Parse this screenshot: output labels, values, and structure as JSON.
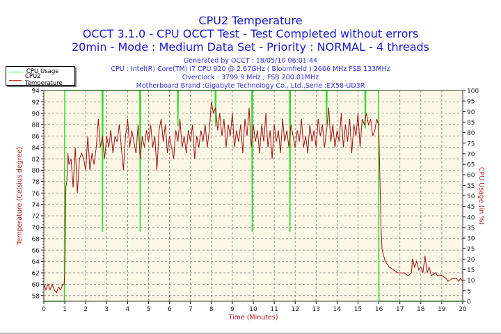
{
  "header": {
    "title": "CPU2 Temperature",
    "line2": "OCCT 3.1.0 - CPU OCCT Test - Test Completed without errors",
    "line3": "20min - Mode : Medium Data Set - Priority : NORMAL - 4 threads",
    "generated": "Generated by OCCT : 18/05/10 06:01:44",
    "cpu": "CPU : Intel(R) Core(TM) i7 CPU 920 @ 2.67GHz ( Bloomfield ) 2666 MHz FSB 133MHz",
    "overclock": "Overclock : 3799.9 MHz ; FSB 200.01MHz",
    "motherboard": "Motherboard Brand :Gigabyte Technology Co., Ltd.,Serie :EX58-UD3R"
  },
  "chart_data": {
    "type": "line",
    "xlabel": "Time (Minutes)",
    "ylabel": "Temperature (Celsius degree)",
    "y2label": "CPU Usage (in %)",
    "xlim": [
      0,
      20
    ],
    "ylim": [
      57,
      94
    ],
    "y2lim": [
      0,
      100
    ],
    "xticks": [
      0,
      1,
      2,
      3,
      4,
      5,
      6,
      7,
      8,
      9,
      10,
      11,
      12,
      13,
      14,
      15,
      16,
      17,
      18,
      19,
      20
    ],
    "yticks": [
      58,
      60,
      62,
      64,
      66,
      68,
      70,
      72,
      74,
      76,
      78,
      80,
      82,
      84,
      86,
      88,
      90,
      92,
      94
    ],
    "y2ticks": [
      0,
      5,
      10,
      15,
      20,
      25,
      30,
      35,
      40,
      45,
      50,
      55,
      60,
      65,
      70,
      75,
      80,
      85,
      90,
      95,
      100
    ],
    "grid": true,
    "legend_position": "top-left",
    "background": "#fdf7e6",
    "series": [
      {
        "name": "CPU Usage",
        "axis": "right",
        "color": "#33dd33",
        "points": [
          [
            0,
            0
          ],
          [
            0.98,
            0
          ],
          [
            1.0,
            100
          ],
          [
            2.78,
            100
          ],
          [
            2.8,
            33
          ],
          [
            2.82,
            100
          ],
          [
            4.58,
            100
          ],
          [
            4.6,
            33
          ],
          [
            4.62,
            100
          ],
          [
            6.38,
            100
          ],
          [
            6.4,
            83
          ],
          [
            6.42,
            100
          ],
          [
            8.18,
            100
          ],
          [
            8.2,
            83
          ],
          [
            8.22,
            100
          ],
          [
            9.93,
            100
          ],
          [
            9.95,
            33
          ],
          [
            9.97,
            100
          ],
          [
            11.73,
            100
          ],
          [
            11.75,
            33
          ],
          [
            11.77,
            100
          ],
          [
            13.48,
            100
          ],
          [
            13.5,
            84
          ],
          [
            13.52,
            100
          ],
          [
            15.33,
            100
          ],
          [
            15.35,
            82
          ],
          [
            15.37,
            100
          ],
          [
            15.98,
            100
          ],
          [
            16.0,
            0
          ],
          [
            20,
            0
          ]
        ]
      },
      {
        "name": "CPU2 Temperature",
        "axis": "left",
        "color": "#a01010",
        "points": [
          [
            0,
            60
          ],
          [
            0.1,
            59
          ],
          [
            0.2,
            60
          ],
          [
            0.3,
            59
          ],
          [
            0.4,
            60
          ],
          [
            0.5,
            59
          ],
          [
            0.6,
            58.5
          ],
          [
            0.7,
            59.5
          ],
          [
            0.8,
            59
          ],
          [
            0.9,
            60
          ],
          [
            0.97,
            60
          ],
          [
            1.0,
            62
          ],
          [
            1.03,
            70
          ],
          [
            1.05,
            77
          ],
          [
            1.1,
            78
          ],
          [
            1.15,
            83
          ],
          [
            1.2,
            81
          ],
          [
            1.3,
            82
          ],
          [
            1.4,
            77
          ],
          [
            1.5,
            84
          ],
          [
            1.6,
            76
          ],
          [
            1.7,
            82
          ],
          [
            1.8,
            83
          ],
          [
            1.9,
            82
          ],
          [
            2.0,
            80
          ],
          [
            2.1,
            86
          ],
          [
            2.2,
            80
          ],
          [
            2.3,
            83
          ],
          [
            2.4,
            81
          ],
          [
            2.5,
            84
          ],
          [
            2.6,
            89
          ],
          [
            2.7,
            84
          ],
          [
            2.8,
            86
          ],
          [
            2.9,
            82
          ],
          [
            3.0,
            86
          ],
          [
            3.1,
            84
          ],
          [
            3.2,
            87
          ],
          [
            3.3,
            83
          ],
          [
            3.4,
            86
          ],
          [
            3.5,
            85
          ],
          [
            3.6,
            88
          ],
          [
            3.7,
            84
          ],
          [
            3.8,
            80
          ],
          [
            3.9,
            86
          ],
          [
            4.0,
            89
          ],
          [
            4.1,
            84
          ],
          [
            4.2,
            87
          ],
          [
            4.3,
            85
          ],
          [
            4.4,
            83
          ],
          [
            4.5,
            88
          ],
          [
            4.6,
            82
          ],
          [
            4.7,
            86
          ],
          [
            4.8,
            84
          ],
          [
            4.9,
            87
          ],
          [
            5.0,
            85
          ],
          [
            5.1,
            88
          ],
          [
            5.2,
            84
          ],
          [
            5.3,
            86
          ],
          [
            5.4,
            80
          ],
          [
            5.5,
            87
          ],
          [
            5.6,
            89
          ],
          [
            5.7,
            85
          ],
          [
            5.8,
            88
          ],
          [
            5.9,
            83
          ],
          [
            6.0,
            86
          ],
          [
            6.1,
            84
          ],
          [
            6.2,
            82
          ],
          [
            6.3,
            87
          ],
          [
            6.4,
            85
          ],
          [
            6.5,
            89
          ],
          [
            6.6,
            84
          ],
          [
            6.7,
            86
          ],
          [
            6.8,
            83
          ],
          [
            6.9,
            87
          ],
          [
            7.0,
            85
          ],
          [
            7.1,
            88
          ],
          [
            7.2,
            82
          ],
          [
            7.3,
            86
          ],
          [
            7.4,
            84
          ],
          [
            7.5,
            87
          ],
          [
            7.6,
            85
          ],
          [
            7.7,
            88
          ],
          [
            7.8,
            84
          ],
          [
            7.9,
            87
          ],
          [
            8.0,
            92
          ],
          [
            8.1,
            90
          ],
          [
            8.2,
            91
          ],
          [
            8.3,
            87
          ],
          [
            8.4,
            90
          ],
          [
            8.5,
            86
          ],
          [
            8.6,
            89
          ],
          [
            8.7,
            84
          ],
          [
            8.8,
            88
          ],
          [
            8.9,
            86
          ],
          [
            9.0,
            90
          ],
          [
            9.1,
            84
          ],
          [
            9.2,
            87
          ],
          [
            9.3,
            85
          ],
          [
            9.4,
            88
          ],
          [
            9.5,
            83
          ],
          [
            9.6,
            89
          ],
          [
            9.7,
            86
          ],
          [
            9.8,
            91
          ],
          [
            9.9,
            84
          ],
          [
            10.0,
            88
          ],
          [
            10.1,
            85
          ],
          [
            10.2,
            87
          ],
          [
            10.3,
            83
          ],
          [
            10.4,
            88
          ],
          [
            10.5,
            85
          ],
          [
            10.6,
            90
          ],
          [
            10.7,
            84
          ],
          [
            10.8,
            87
          ],
          [
            10.9,
            82
          ],
          [
            11.0,
            88
          ],
          [
            11.1,
            85
          ],
          [
            11.2,
            87
          ],
          [
            11.3,
            83
          ],
          [
            11.4,
            89
          ],
          [
            11.5,
            85
          ],
          [
            11.6,
            87
          ],
          [
            11.7,
            84
          ],
          [
            11.8,
            88
          ],
          [
            11.9,
            86
          ],
          [
            12.0,
            84
          ],
          [
            12.1,
            87
          ],
          [
            12.2,
            85
          ],
          [
            12.3,
            89
          ],
          [
            12.4,
            84
          ],
          [
            12.5,
            86
          ],
          [
            12.6,
            83
          ],
          [
            12.7,
            88
          ],
          [
            12.8,
            85
          ],
          [
            12.9,
            87
          ],
          [
            13.0,
            84
          ],
          [
            13.1,
            89
          ],
          [
            13.2,
            86
          ],
          [
            13.3,
            88
          ],
          [
            13.4,
            84
          ],
          [
            13.5,
            87
          ],
          [
            13.6,
            91
          ],
          [
            13.7,
            85
          ],
          [
            13.8,
            88
          ],
          [
            13.9,
            84
          ],
          [
            14.0,
            87
          ],
          [
            14.1,
            85
          ],
          [
            14.2,
            90
          ],
          [
            14.3,
            84
          ],
          [
            14.4,
            88
          ],
          [
            14.5,
            85
          ],
          [
            14.6,
            89
          ],
          [
            14.7,
            83
          ],
          [
            14.8,
            88
          ],
          [
            14.9,
            86
          ],
          [
            15.0,
            90
          ],
          [
            15.1,
            84
          ],
          [
            15.2,
            89
          ],
          [
            15.3,
            88
          ],
          [
            15.4,
            90
          ],
          [
            15.5,
            88
          ],
          [
            15.6,
            89
          ],
          [
            15.7,
            86
          ],
          [
            15.8,
            87
          ],
          [
            15.9,
            89
          ],
          [
            15.97,
            88
          ],
          [
            16.0,
            86
          ],
          [
            16.05,
            78
          ],
          [
            16.1,
            70
          ],
          [
            16.15,
            66
          ],
          [
            16.3,
            64
          ],
          [
            16.5,
            63
          ],
          [
            16.7,
            62.5
          ],
          [
            16.9,
            62
          ],
          [
            17.2,
            62
          ],
          [
            17.4,
            61.5
          ],
          [
            17.55,
            62
          ],
          [
            17.6,
            64.5
          ],
          [
            17.7,
            63
          ],
          [
            17.8,
            64
          ],
          [
            17.9,
            62.5
          ],
          [
            18.0,
            63
          ],
          [
            18.1,
            62
          ],
          [
            18.2,
            65
          ],
          [
            18.3,
            62
          ],
          [
            18.4,
            63
          ],
          [
            18.5,
            61.5
          ],
          [
            18.7,
            62
          ],
          [
            18.8,
            61.5
          ],
          [
            19.0,
            61.5
          ],
          [
            19.2,
            61
          ],
          [
            19.3,
            60.5
          ],
          [
            19.5,
            61
          ],
          [
            19.7,
            61
          ],
          [
            19.8,
            60.5
          ],
          [
            19.9,
            61
          ],
          [
            20,
            60.5
          ]
        ]
      }
    ]
  }
}
